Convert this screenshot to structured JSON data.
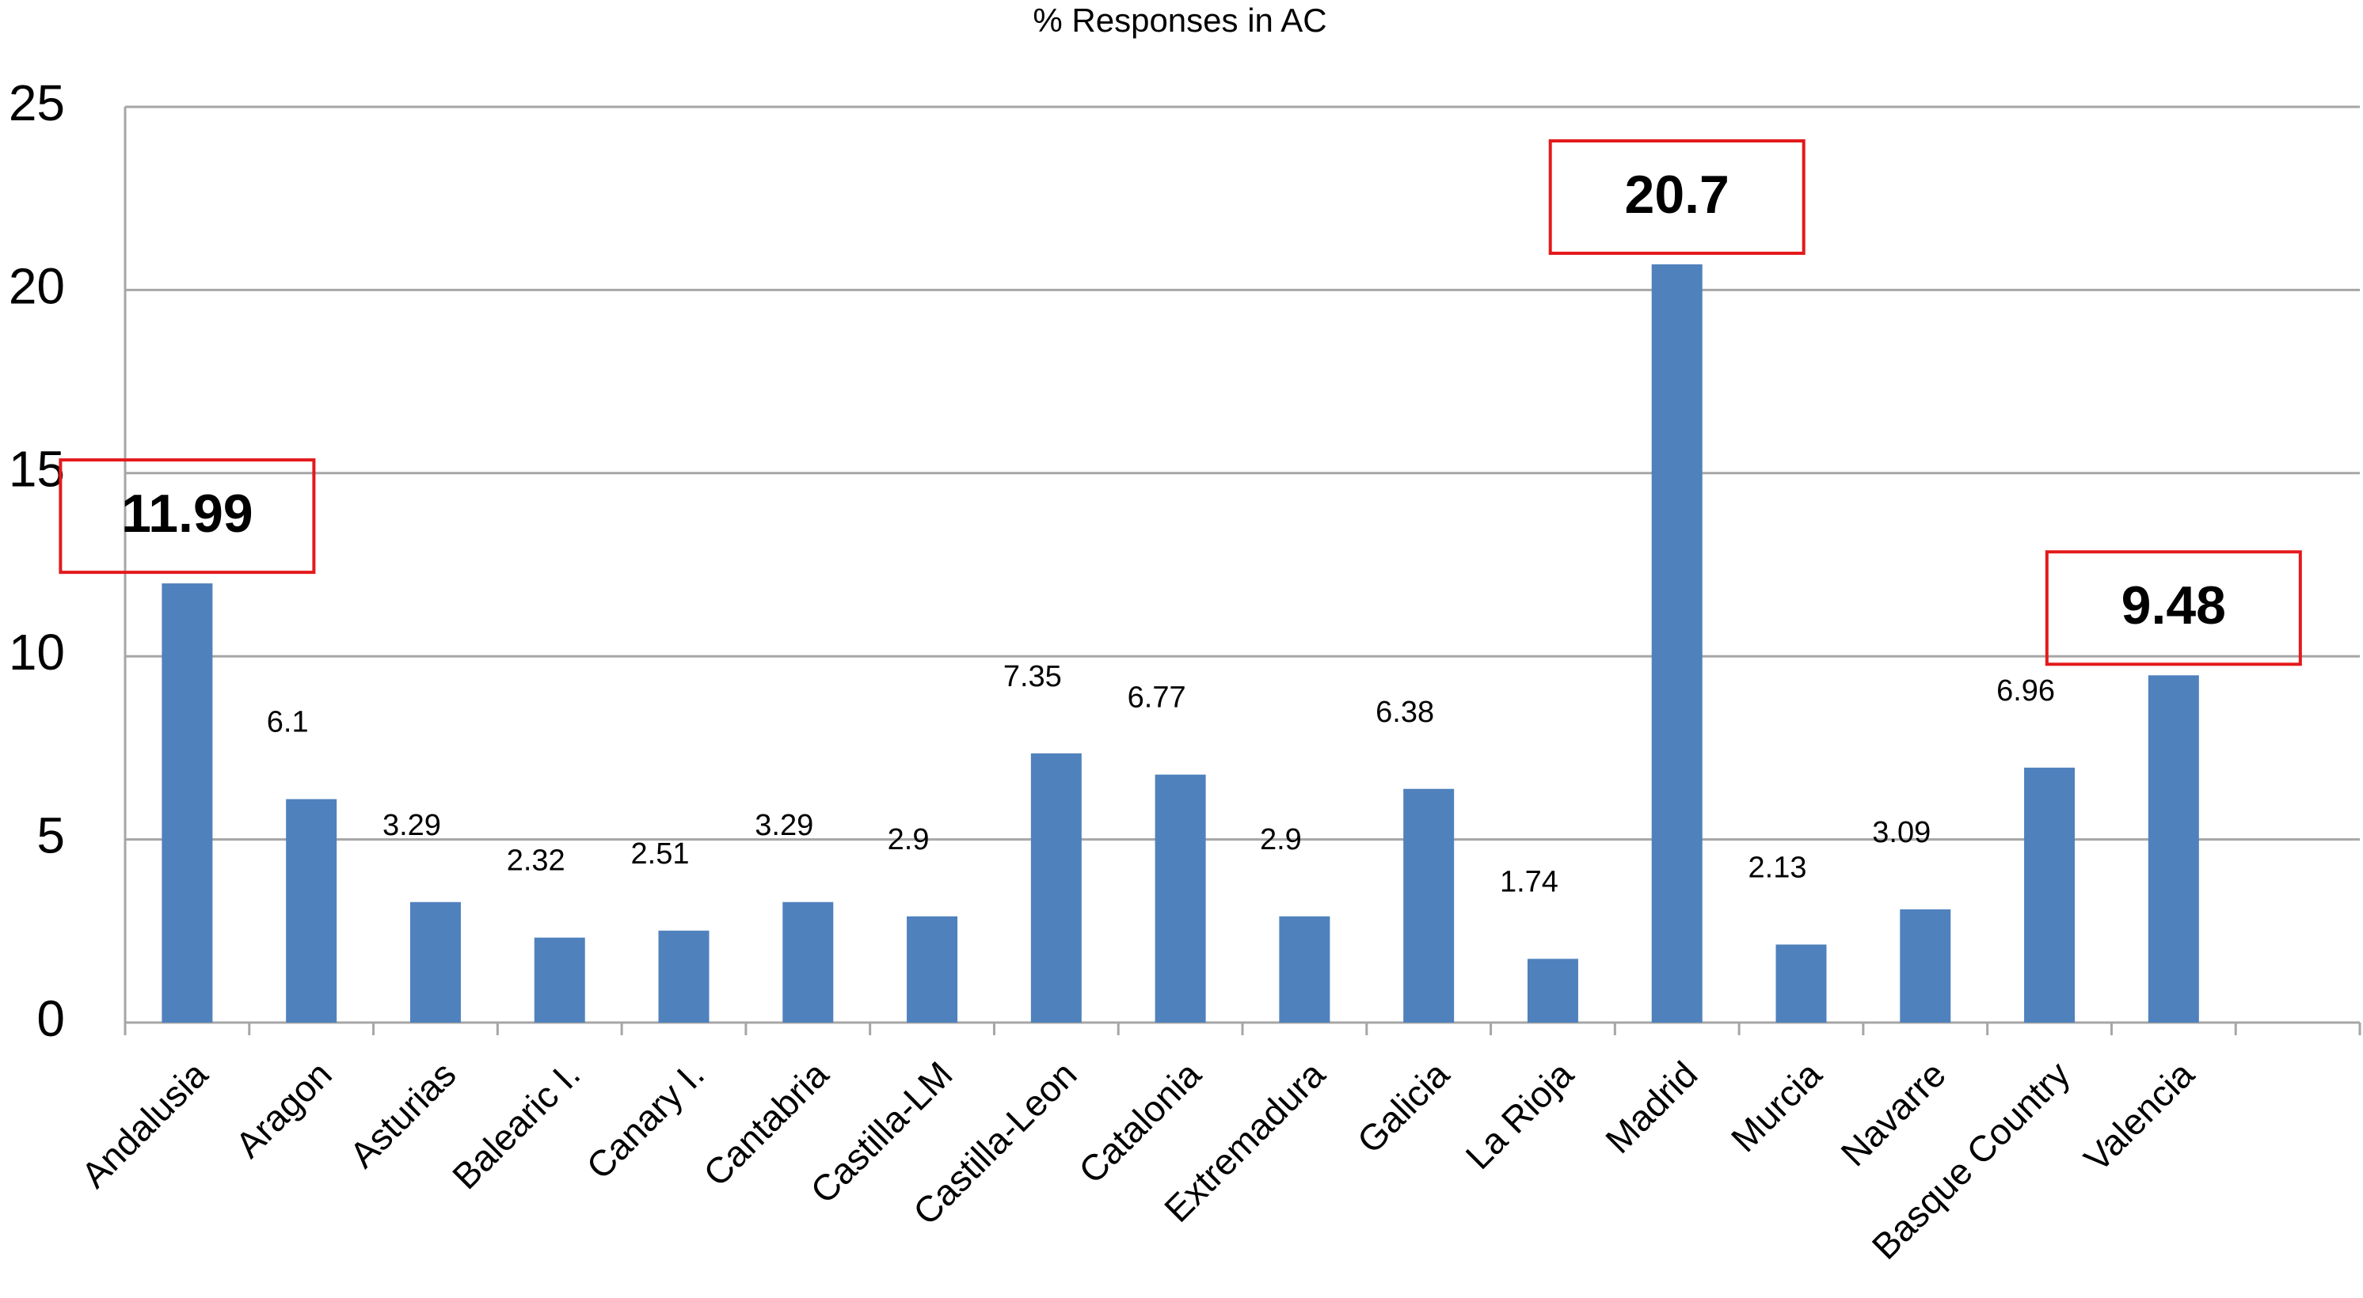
{
  "chart_data": {
    "type": "bar",
    "title": "% Responses in AC",
    "categories": [
      "Andalusia",
      "Aragon",
      "Asturias",
      "Balearic I.",
      "Canary I.",
      "Cantabria",
      "Castilla-LM",
      "Castilla-Leon",
      "Catalonia",
      "Extremadura",
      "Galicia",
      "La Rioja",
      "Madrid",
      "Murcia",
      "Navarre",
      "Basque Country",
      "Valencia"
    ],
    "values": [
      11.99,
      6.1,
      3.29,
      2.32,
      2.51,
      3.29,
      2.9,
      7.35,
      6.77,
      2.9,
      6.38,
      1.74,
      20.7,
      2.13,
      3.09,
      6.96,
      9.48
    ],
    "color": "#4f81bd",
    "highlighted": [
      0,
      12,
      16
    ],
    "highlight_color": "#e31a1c",
    "ylim": [
      0,
      25
    ],
    "yticks": [
      0,
      5,
      10,
      15,
      20,
      25
    ],
    "grid": true
  }
}
